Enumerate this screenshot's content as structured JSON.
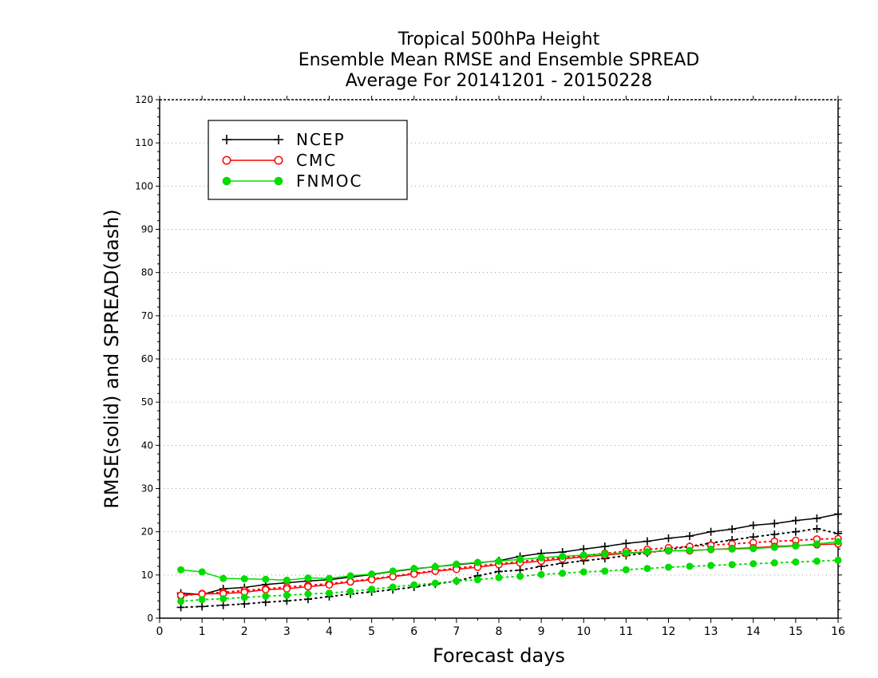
{
  "chart_data": {
    "type": "line",
    "title_lines": [
      "Tropical 500hPa Height",
      "Ensemble Mean RMSE and Ensemble SPREAD",
      "Average For 20141201 - 20150228"
    ],
    "xlabel": "Forecast days",
    "ylabel": "RMSE(solid) and SPREAD(dash)",
    "xlim": [
      0,
      16
    ],
    "ylim": [
      0,
      120
    ],
    "x_ticks": [
      0,
      1,
      2,
      3,
      4,
      5,
      6,
      7,
      8,
      9,
      10,
      11,
      12,
      13,
      14,
      15,
      16
    ],
    "y_ticks": [
      0,
      10,
      20,
      30,
      40,
      50,
      60,
      70,
      80,
      90,
      100,
      110,
      120
    ],
    "grid": "horizontal-dotted",
    "legend_position": "top-left",
    "x": [
      0.5,
      1,
      1.5,
      2,
      2.5,
      3,
      3.5,
      4,
      4.5,
      5,
      5.5,
      6,
      6.5,
      7,
      7.5,
      8,
      8.5,
      9,
      9.5,
      10,
      10.5,
      11,
      11.5,
      12,
      12.5,
      13,
      13.5,
      14,
      14.5,
      15,
      15.5,
      16
    ],
    "series": [
      {
        "name": "NCEP",
        "color": "#000000",
        "marker": "plus",
        "rmse": [
          5.8,
          5.5,
          6.8,
          7.1,
          7.8,
          8.2,
          8.6,
          8.9,
          9.5,
          10.1,
          10.8,
          11.4,
          11.9,
          12.4,
          12.8,
          13.3,
          14.3,
          15.0,
          15.3,
          16.0,
          16.6,
          17.3,
          17.8,
          18.5,
          19.0,
          20.0,
          20.6,
          21.5,
          21.9,
          22.6,
          23.1,
          24.1
        ],
        "spread": [
          2.5,
          2.7,
          3.0,
          3.3,
          3.7,
          4.0,
          4.4,
          5.0,
          5.6,
          6.1,
          6.6,
          7.2,
          7.9,
          8.6,
          9.8,
          10.8,
          11.1,
          12.0,
          12.7,
          13.3,
          13.8,
          14.5,
          15.1,
          15.9,
          16.6,
          17.4,
          18.1,
          18.8,
          19.4,
          20.0,
          20.7,
          19.6
        ]
      },
      {
        "name": "CMC",
        "color": "#ff0000",
        "marker": "open-circle",
        "rmse": [
          5.3,
          5.6,
          5.7,
          6.0,
          6.6,
          6.8,
          7.3,
          7.7,
          8.4,
          8.9,
          9.6,
          10.2,
          10.9,
          11.3,
          11.8,
          12.4,
          12.8,
          13.2,
          13.7,
          14.2,
          14.6,
          15.0,
          15.3,
          15.6,
          15.6,
          15.9,
          16.1,
          16.3,
          16.6,
          16.8,
          17.0,
          17.2
        ],
        "spread": [
          5.1,
          5.7,
          6.0,
          6.4,
          6.8,
          7.2,
          7.6,
          8.0,
          8.5,
          9.1,
          9.7,
          10.4,
          11.0,
          11.6,
          12.1,
          12.6,
          13.1,
          13.6,
          14.0,
          14.5,
          15.0,
          15.5,
          15.9,
          16.3,
          16.6,
          16.9,
          17.2,
          17.5,
          17.8,
          18.0,
          18.3,
          18.4
        ]
      },
      {
        "name": "FNMOC",
        "color": "#00dd00",
        "marker": "filled-circle",
        "rmse": [
          11.2,
          10.7,
          9.2,
          9.1,
          9.0,
          8.8,
          9.3,
          9.2,
          9.8,
          10.2,
          10.9,
          11.5,
          11.9,
          12.5,
          12.9,
          13.2,
          13.6,
          14.0,
          14.3,
          14.6,
          14.9,
          15.1,
          15.4,
          15.6,
          15.7,
          15.9,
          16.0,
          16.1,
          16.4,
          16.7,
          17.2,
          17.7
        ],
        "spread": [
          3.9,
          4.3,
          4.5,
          4.8,
          5.1,
          5.3,
          5.6,
          5.8,
          6.2,
          6.7,
          7.2,
          7.7,
          8.1,
          8.6,
          8.9,
          9.4,
          9.7,
          10.1,
          10.4,
          10.7,
          10.9,
          11.2,
          11.5,
          11.8,
          12.0,
          12.2,
          12.4,
          12.6,
          12.8,
          13.0,
          13.2,
          13.4
        ]
      }
    ]
  }
}
